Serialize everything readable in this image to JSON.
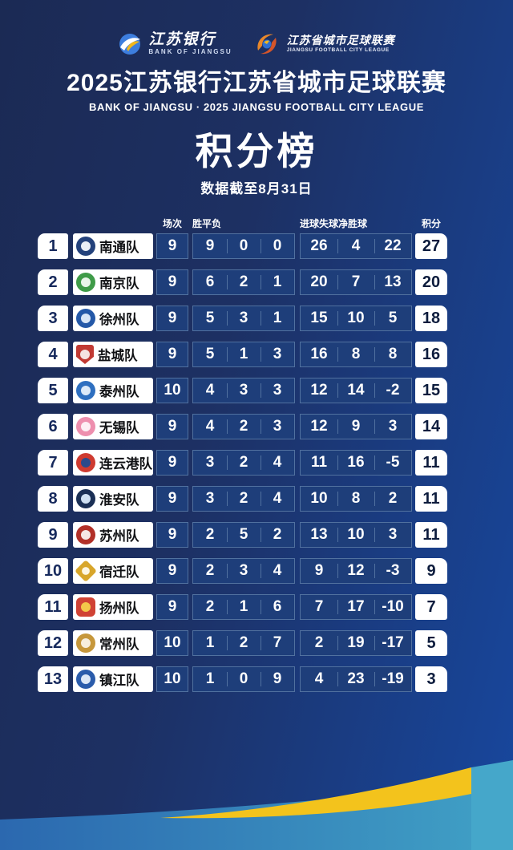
{
  "header": {
    "bank_logo": {
      "cn": "江苏银行",
      "en": "BANK OF JIANGSU"
    },
    "league_logo": {
      "cn": "江苏省城市足球联赛",
      "en": "JIANGSU FOOTBALL CITY LEAGUE"
    },
    "title": "2025江苏银行江苏省城市足球联赛",
    "subtitle": "BANK OF JIANGSU · 2025 JIANGSU FOOTBALL CITY LEAGUE"
  },
  "standings": {
    "title": "积分榜",
    "as_of": "数据截至8月31日"
  },
  "chart_data": {
    "type": "table",
    "title": "积分榜",
    "subtitle": "数据截至8月31日",
    "columns": [
      "场次",
      "胜",
      "平",
      "负",
      "进球",
      "失球",
      "净胜球",
      "积分"
    ],
    "column_keys": [
      "played",
      "won",
      "drawn",
      "lost",
      "goals_for",
      "goals_against",
      "goal_diff",
      "points"
    ],
    "rows": [
      {
        "rank": 1,
        "team": "南通队",
        "badge": {
          "icon": "nantong-crest-icon",
          "shape": "circle",
          "color": "#24427c",
          "core": "#e9eef6"
        },
        "played": 9,
        "won": 9,
        "drawn": 0,
        "lost": 0,
        "goals_for": 26,
        "goals_against": 4,
        "goal_diff": 22,
        "points": 27
      },
      {
        "rank": 2,
        "team": "南京队",
        "badge": {
          "icon": "nanjing-crest-icon",
          "shape": "circle",
          "color": "#3f9b48",
          "core": "#eaf5ea"
        },
        "played": 9,
        "won": 6,
        "drawn": 2,
        "lost": 1,
        "goals_for": 20,
        "goals_against": 7,
        "goal_diff": 13,
        "points": 20
      },
      {
        "rank": 3,
        "team": "徐州队",
        "badge": {
          "icon": "xuzhou-crest-icon",
          "shape": "circle",
          "color": "#2458a8",
          "core": "#d9e6f7"
        },
        "played": 9,
        "won": 5,
        "drawn": 3,
        "lost": 1,
        "goals_for": 15,
        "goals_against": 10,
        "goal_diff": 5,
        "points": 18
      },
      {
        "rank": 4,
        "team": "盐城队",
        "badge": {
          "icon": "yancheng-crest-icon",
          "shape": "shield",
          "color": "#c13a33",
          "core": "#f5e3e1"
        },
        "played": 9,
        "won": 5,
        "drawn": 1,
        "lost": 3,
        "goals_for": 16,
        "goals_against": 8,
        "goal_diff": 8,
        "points": 16
      },
      {
        "rank": 5,
        "team": "泰州队",
        "badge": {
          "icon": "taizhou-crest-icon",
          "shape": "circle",
          "color": "#2e6fc0",
          "core": "#dce9f8"
        },
        "played": 10,
        "won": 4,
        "drawn": 3,
        "lost": 3,
        "goals_for": 12,
        "goals_against": 14,
        "goal_diff": -2,
        "points": 15
      },
      {
        "rank": 6,
        "team": "无锡队",
        "badge": {
          "icon": "wuxi-crest-icon",
          "shape": "circle",
          "color": "#ee8fae",
          "core": "#fdeff4"
        },
        "played": 9,
        "won": 4,
        "drawn": 2,
        "lost": 3,
        "goals_for": 12,
        "goals_against": 9,
        "goal_diff": 3,
        "points": 14
      },
      {
        "rank": 7,
        "team": "连云港队",
        "badge": {
          "icon": "lianyungang-crest-icon",
          "shape": "circle",
          "color": "#cf3b30",
          "core": "#2a4a8c"
        },
        "played": 9,
        "won": 3,
        "drawn": 2,
        "lost": 4,
        "goals_for": 11,
        "goals_against": 16,
        "goal_diff": -5,
        "points": 11
      },
      {
        "rank": 8,
        "team": "淮安队",
        "badge": {
          "icon": "huaian-crest-icon",
          "shape": "circle",
          "color": "#1a2f55",
          "core": "#cfe0f2"
        },
        "played": 9,
        "won": 3,
        "drawn": 2,
        "lost": 4,
        "goals_for": 10,
        "goals_against": 8,
        "goal_diff": 2,
        "points": 11
      },
      {
        "rank": 9,
        "team": "苏州队",
        "badge": {
          "icon": "suzhou-crest-icon",
          "shape": "circle",
          "color": "#b23028",
          "core": "#f6e7e5"
        },
        "played": 9,
        "won": 2,
        "drawn": 5,
        "lost": 2,
        "goals_for": 13,
        "goals_against": 10,
        "goal_diff": 3,
        "points": 11
      },
      {
        "rank": 10,
        "team": "宿迁队",
        "badge": {
          "icon": "suqian-crest-icon",
          "shape": "diamond",
          "color": "#d8a62b",
          "core": "#fdf6e3"
        },
        "played": 9,
        "won": 2,
        "drawn": 3,
        "lost": 4,
        "goals_for": 9,
        "goals_against": 12,
        "goal_diff": -3,
        "points": 9
      },
      {
        "rank": 11,
        "team": "扬州队",
        "badge": {
          "icon": "yangzhou-crest-icon",
          "shape": "square",
          "color": "#d04234",
          "core": "#f3c84a"
        },
        "played": 9,
        "won": 2,
        "drawn": 1,
        "lost": 6,
        "goals_for": 7,
        "goals_against": 17,
        "goal_diff": -10,
        "points": 7
      },
      {
        "rank": 12,
        "team": "常州队",
        "badge": {
          "icon": "changzhou-crest-icon",
          "shape": "circle",
          "color": "#c6973b",
          "core": "#f7efdf"
        },
        "played": 10,
        "won": 1,
        "drawn": 2,
        "lost": 7,
        "goals_for": 2,
        "goals_against": 19,
        "goal_diff": -17,
        "points": 5
      },
      {
        "rank": 13,
        "team": "镇江队",
        "badge": {
          "icon": "zhenjiang-crest-icon",
          "shape": "circle",
          "color": "#2b5cab",
          "core": "#dde8f7"
        },
        "played": 10,
        "won": 1,
        "drawn": 0,
        "lost": 9,
        "goals_for": 4,
        "goals_against": 23,
        "goal_diff": -19,
        "points": 3
      }
    ]
  },
  "colors": {
    "background_navy": "#1b2a54",
    "background_bright_blue": "#17479e",
    "cell_blue": "#1e3e7a",
    "cell_border": "#51719f",
    "accent_yellow": "#f3c31c",
    "wave_blue": "#2b68af",
    "wave_teal": "#45a7ca",
    "rank_text_navy": "#16295c"
  }
}
